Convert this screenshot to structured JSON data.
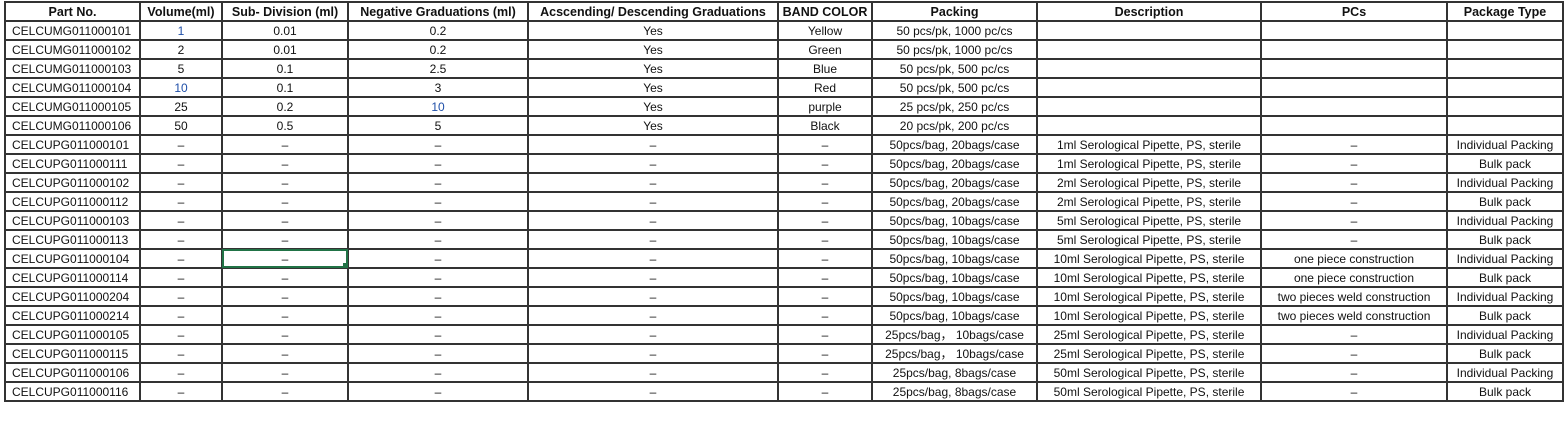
{
  "columns": [
    "Part No.",
    "Volume(ml)",
    "Sub- Division (ml)",
    "Negative Graduations (ml)",
    "Acscending/ Descending Graduations",
    "BAND COLOR",
    "Packing",
    "Description",
    "PCs",
    "Package Type"
  ],
  "rows": [
    [
      "CELCUMG011000101",
      "1",
      "0.01",
      "0.2",
      "Yes",
      "Yellow",
      "50 pcs/pk, 1000 pc/cs",
      "",
      "",
      ""
    ],
    [
      "CELCUMG011000102",
      "2",
      "0.01",
      "0.2",
      "Yes",
      "Green",
      "50 pcs/pk, 1000 pc/cs",
      "",
      "",
      ""
    ],
    [
      "CELCUMG011000103",
      "5",
      "0.1",
      "2.5",
      "Yes",
      "Blue",
      "50 pcs/pk, 500 pc/cs",
      "",
      "",
      ""
    ],
    [
      "CELCUMG011000104",
      "10",
      "0.1",
      "3",
      "Yes",
      "Red",
      "50 pcs/pk, 500 pc/cs",
      "",
      "",
      ""
    ],
    [
      "CELCUMG011000105",
      "25",
      "0.2",
      "10",
      "Yes",
      "purple",
      "25 pcs/pk, 250 pc/cs",
      "",
      "",
      ""
    ],
    [
      "CELCUMG011000106",
      "50",
      "0.5",
      "5",
      "Yes",
      "Black",
      "20 pcs/pk, 200 pc/cs",
      "",
      "",
      ""
    ],
    [
      "CELCUPG011000101",
      "–",
      "–",
      "–",
      "–",
      "–",
      "50pcs/bag, 20bags/case",
      "1ml Serological Pipette, PS, sterile",
      "–",
      "Individual Packing"
    ],
    [
      "CELCUPG011000111",
      "–",
      "–",
      "–",
      "–",
      "–",
      "50pcs/bag, 20bags/case",
      "1ml Serological Pipette, PS, sterile",
      "–",
      "Bulk pack"
    ],
    [
      "CELCUPG011000102",
      "–",
      "–",
      "–",
      "–",
      "–",
      "50pcs/bag, 20bags/case",
      "2ml Serological Pipette, PS, sterile",
      "–",
      "Individual Packing"
    ],
    [
      "CELCUPG011000112",
      "–",
      "–",
      "–",
      "–",
      "–",
      "50pcs/bag, 20bags/case",
      "2ml Serological Pipette, PS, sterile",
      "–",
      "Bulk pack"
    ],
    [
      "CELCUPG011000103",
      "–",
      "–",
      "–",
      "–",
      "–",
      "50pcs/bag, 10bags/case",
      "5ml Serological Pipette, PS, sterile",
      "–",
      "Individual Packing"
    ],
    [
      "CELCUPG011000113",
      "–",
      "–",
      "–",
      "–",
      "–",
      "50pcs/bag, 10bags/case",
      "5ml Serological Pipette, PS, sterile",
      "–",
      "Bulk pack"
    ],
    [
      "CELCUPG011000104",
      "–",
      "–",
      "–",
      "–",
      "–",
      "50pcs/bag, 10bags/case",
      "10ml Serological Pipette, PS, sterile",
      "one piece construction",
      "Individual Packing"
    ],
    [
      "CELCUPG011000114",
      "–",
      "–",
      "–",
      "–",
      "–",
      "50pcs/bag, 10bags/case",
      "10ml Serological Pipette, PS, sterile",
      "one piece construction",
      "Bulk pack"
    ],
    [
      "CELCUPG011000204",
      "–",
      "–",
      "–",
      "–",
      "–",
      "50pcs/bag, 10bags/case",
      "10ml Serological Pipette, PS, sterile",
      "two pieces weld construction",
      "Individual Packing"
    ],
    [
      "CELCUPG011000214",
      "–",
      "–",
      "–",
      "–",
      "–",
      "50pcs/bag, 10bags/case",
      "10ml Serological Pipette, PS, sterile",
      "two pieces weld construction",
      "Bulk pack"
    ],
    [
      "CELCUPG011000105",
      "–",
      "–",
      "–",
      "–",
      "–",
      "25pcs/bag，  10bags/case",
      "25ml Serological Pipette, PS, sterile",
      "–",
      "Individual Packing"
    ],
    [
      "CELCUPG011000115",
      "–",
      "–",
      "–",
      "–",
      "–",
      "25pcs/bag，  10bags/case",
      "25ml Serological Pipette, PS, sterile",
      "–",
      "Bulk pack"
    ],
    [
      "CELCUPG011000106",
      "–",
      "–",
      "–",
      "–",
      "–",
      "25pcs/bag, 8bags/case",
      "50ml Serological Pipette, PS, sterile",
      "–",
      "Individual Packing"
    ],
    [
      "CELCUPG011000116",
      "–",
      "–",
      "–",
      "–",
      "–",
      "25pcs/bag, 8bags/case",
      "50ml Serological Pipette, PS, sterile",
      "–",
      "Bulk pack"
    ]
  ],
  "selected_cell": {
    "row": 12,
    "column": 2
  },
  "colors": {
    "selection": "#217346",
    "border": "#333333"
  }
}
